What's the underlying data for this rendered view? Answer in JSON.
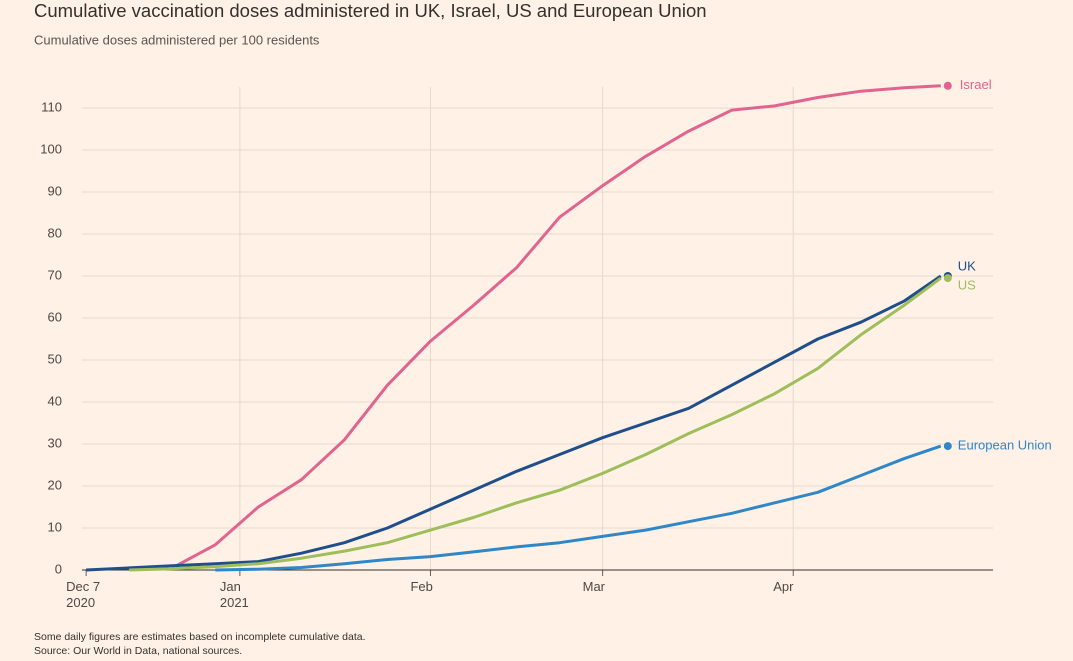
{
  "chart_data": {
    "type": "line",
    "title": "Cumulative vaccination doses administered in UK, Israel, US and European Union",
    "subtitle": "Cumulative doses administered per 100 residents",
    "notes": [
      "Some daily figures are estimates based on incomplete cumulative data.",
      "Source: Our World in Data, national sources."
    ],
    "x": [
      "2020-12-07",
      "2020-12-14",
      "2020-12-21",
      "2020-12-28",
      "2021-01-04",
      "2021-01-11",
      "2021-01-18",
      "2021-01-25",
      "2021-02-01",
      "2021-02-08",
      "2021-02-15",
      "2021-02-22",
      "2021-03-01",
      "2021-03-08",
      "2021-03-15",
      "2021-03-22",
      "2021-03-29",
      "2021-04-05",
      "2021-04-12",
      "2021-04-19",
      "2021-04-25"
    ],
    "series": [
      {
        "name": "Israel",
        "color": "#e0648f",
        "values": [
          null,
          null,
          0.5,
          6,
          15,
          21.5,
          31,
          44,
          54.5,
          63,
          72,
          84,
          91.5,
          98.5,
          104.5,
          109.5,
          110.5,
          112.5,
          114,
          114.8,
          115.3
        ]
      },
      {
        "name": "UK",
        "color": "#1f4e8c",
        "values": [
          0,
          0.5,
          1,
          1.5,
          2,
          4,
          6.5,
          10,
          14.5,
          19,
          23.5,
          27.5,
          31.5,
          35,
          38.5,
          44,
          49.5,
          55,
          59,
          64,
          70
        ]
      },
      {
        "name": "US",
        "color": "#9dbe5a",
        "values": [
          null,
          0,
          0.3,
          0.8,
          1.5,
          2.8,
          4.5,
          6.5,
          9.5,
          12.5,
          16,
          19,
          23,
          27.5,
          32.5,
          37,
          42,
          48,
          56,
          63,
          69.5
        ]
      },
      {
        "name": "European Union",
        "color": "#2f87c8",
        "values": [
          null,
          null,
          null,
          0,
          0.2,
          0.6,
          1.5,
          2.5,
          3.2,
          4.3,
          5.5,
          6.5,
          8,
          9.5,
          11.5,
          13.5,
          16,
          18.5,
          22.5,
          26.5,
          29.5
        ]
      }
    ],
    "xlim": [
      "2020-12-06",
      "2021-05-03"
    ],
    "xticks": [
      {
        "value": "2020-12-07",
        "label": "Dec 7\n2020"
      },
      {
        "value": "2021-01-01",
        "label": "Jan\n2021"
      },
      {
        "value": "2021-02-01",
        "label": "Feb"
      },
      {
        "value": "2021-03-01",
        "label": "Mar"
      },
      {
        "value": "2021-04-01",
        "label": "Apr"
      }
    ],
    "ylim": [
      0,
      115
    ],
    "yticks": [
      0,
      10,
      20,
      30,
      40,
      50,
      60,
      70,
      80,
      90,
      100,
      110
    ],
    "grid": true
  }
}
